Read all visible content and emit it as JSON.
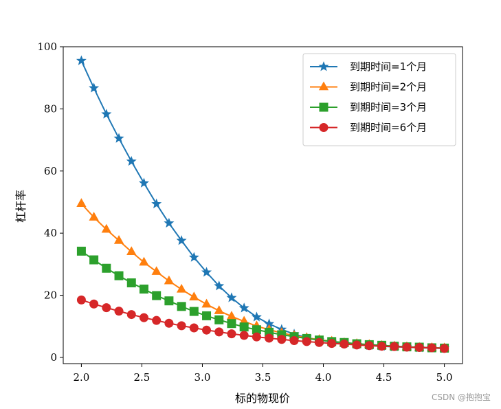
{
  "chart_data": {
    "type": "line",
    "title": "",
    "xlabel": "标的物现价",
    "ylabel": "杠杆率",
    "xlim": [
      1.85,
      5.15
    ],
    "ylim": [
      -2,
      100
    ],
    "xticks": [
      2.0,
      2.5,
      3.0,
      3.5,
      4.0,
      4.5,
      5.0
    ],
    "xtick_labels": [
      "2.0",
      "2.5",
      "3.0",
      "3.5",
      "4.0",
      "4.5",
      "5.0"
    ],
    "yticks": [
      0,
      20,
      40,
      60,
      80,
      100
    ],
    "ytick_labels": [
      "0",
      "20",
      "40",
      "60",
      "80",
      "100"
    ],
    "grid": false,
    "legend_position": "top-right",
    "x": [
      2.0,
      2.1034,
      2.2069,
      2.3103,
      2.4138,
      2.5172,
      2.6207,
      2.7241,
      2.8276,
      2.931,
      3.0345,
      3.1379,
      3.2414,
      3.3448,
      3.4483,
      3.5517,
      3.6552,
      3.7586,
      3.8621,
      3.9655,
      4.069,
      4.1724,
      4.2759,
      4.3793,
      4.4828,
      4.5862,
      4.6897,
      4.7931,
      4.8966,
      5.0
    ],
    "series": [
      {
        "name": "到期时间=1个月",
        "color": "#1f77b4",
        "marker": "star",
        "values": [
          95.5,
          86.7,
          78.3,
          70.5,
          63.1,
          56.1,
          49.4,
          43.2,
          37.6,
          32.2,
          27.4,
          23.0,
          19.2,
          15.9,
          13.0,
          10.8,
          9.0,
          7.5,
          6.4,
          5.6,
          5.0,
          4.5,
          4.1,
          3.8,
          3.6,
          3.4,
          3.3,
          3.1,
          3.0,
          2.9
        ]
      },
      {
        "name": "到期时间=2个月",
        "color": "#ff7f0e",
        "marker": "triangle",
        "values": [
          49.5,
          45.1,
          41.2,
          37.6,
          34.0,
          30.6,
          27.6,
          24.6,
          21.9,
          19.4,
          17.1,
          15.0,
          13.2,
          11.6,
          10.1,
          8.9,
          7.9,
          7.0,
          6.3,
          5.7,
          5.2,
          4.7,
          4.4,
          4.1,
          3.8,
          3.6,
          3.4,
          3.2,
          3.1,
          3.0
        ]
      },
      {
        "name": "到期时间=3个月",
        "color": "#2ca02c",
        "marker": "square",
        "values": [
          34.2,
          31.4,
          28.7,
          26.3,
          24.0,
          22.0,
          19.9,
          18.2,
          16.4,
          14.8,
          13.4,
          12.1,
          10.9,
          9.8,
          8.9,
          8.1,
          7.3,
          6.7,
          6.1,
          5.6,
          5.1,
          4.8,
          4.4,
          4.1,
          3.9,
          3.6,
          3.4,
          3.3,
          3.1,
          3.0
        ]
      },
      {
        "name": "到期时间=6个月",
        "color": "#d62728",
        "marker": "circle",
        "values": [
          18.5,
          17.2,
          16.0,
          14.9,
          13.8,
          12.8,
          11.9,
          11.0,
          10.2,
          9.5,
          8.8,
          8.2,
          7.6,
          7.1,
          6.6,
          6.2,
          5.8,
          5.4,
          5.1,
          4.8,
          4.5,
          4.3,
          4.0,
          3.8,
          3.6,
          3.5,
          3.3,
          3.2,
          3.1,
          2.9
        ]
      }
    ]
  },
  "watermark": "CSDN @抱抱宝"
}
